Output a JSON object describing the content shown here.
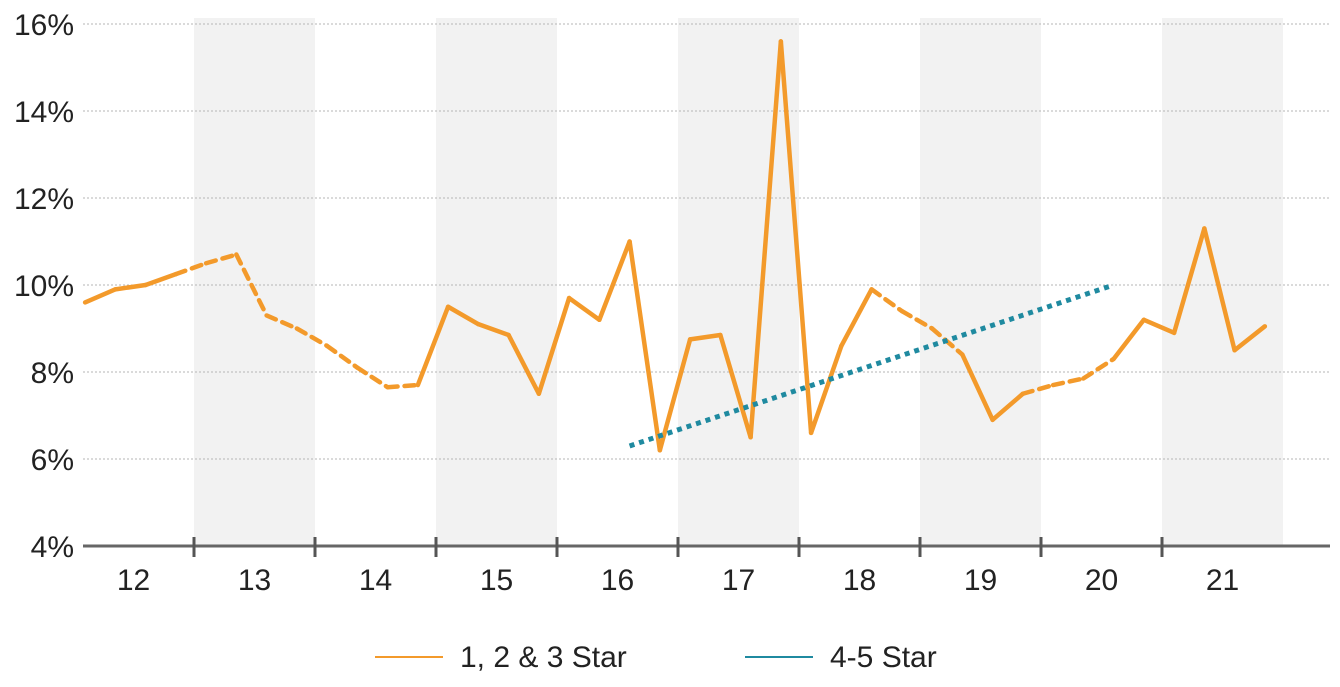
{
  "chart_data": {
    "type": "line",
    "x_categories": [
      "12",
      "13",
      "14",
      "15",
      "16",
      "17",
      "18",
      "19",
      "20",
      "21"
    ],
    "y_ticks": [
      "4%",
      "6%",
      "8%",
      "10%",
      "12%",
      "14%",
      "16%"
    ],
    "ylim": [
      4,
      16
    ],
    "xlim": [
      0,
      10
    ],
    "grid": true,
    "legend_position": "bottom",
    "series": [
      {
        "name": "1, 2 & 3 Star",
        "color": "#F39A2B",
        "points": [
          {
            "x": 0.1,
            "y": 9.6
          },
          {
            "x": 0.35,
            "y": 9.9
          },
          {
            "x": 0.6,
            "y": 10.0
          },
          {
            "x": 0.85,
            "y": 10.25
          },
          {
            "x": 1.1,
            "y": 10.5,
            "style": "dashed"
          },
          {
            "x": 1.35,
            "y": 10.7,
            "style": "dashed"
          },
          {
            "x": 1.6,
            "y": 9.3
          },
          {
            "x": 1.85,
            "y": 9.0,
            "style": "dashed"
          },
          {
            "x": 2.1,
            "y": 8.6,
            "style": "dashed"
          },
          {
            "x": 2.35,
            "y": 8.1,
            "style": "dashed"
          },
          {
            "x": 2.6,
            "y": 7.65,
            "style": "dashed"
          },
          {
            "x": 2.85,
            "y": 7.7
          },
          {
            "x": 3.1,
            "y": 9.5
          },
          {
            "x": 3.35,
            "y": 9.1
          },
          {
            "x": 3.6,
            "y": 8.85
          },
          {
            "x": 3.85,
            "y": 7.5
          },
          {
            "x": 4.1,
            "y": 9.7
          },
          {
            "x": 4.35,
            "y": 9.2
          },
          {
            "x": 4.6,
            "y": 11.0
          },
          {
            "x": 4.85,
            "y": 6.2
          },
          {
            "x": 5.1,
            "y": 8.75
          },
          {
            "x": 5.35,
            "y": 8.85
          },
          {
            "x": 5.6,
            "y": 6.5
          },
          {
            "x": 5.85,
            "y": 15.6
          },
          {
            "x": 6.1,
            "y": 6.6
          },
          {
            "x": 6.35,
            "y": 8.6
          },
          {
            "x": 6.6,
            "y": 9.9
          },
          {
            "x": 6.85,
            "y": 9.4,
            "style": "dashed"
          },
          {
            "x": 7.1,
            "y": 9.0,
            "style": "dashed"
          },
          {
            "x": 7.35,
            "y": 8.4
          },
          {
            "x": 7.6,
            "y": 6.9
          },
          {
            "x": 7.85,
            "y": 7.5
          },
          {
            "x": 8.1,
            "y": 7.7,
            "style": "dashed"
          },
          {
            "x": 8.35,
            "y": 7.85,
            "style": "dashed"
          },
          {
            "x": 8.6,
            "y": 8.3
          },
          {
            "x": 8.85,
            "y": 9.2
          },
          {
            "x": 9.1,
            "y": 8.9
          },
          {
            "x": 9.35,
            "y": 11.3
          },
          {
            "x": 9.6,
            "y": 8.5
          },
          {
            "x": 9.85,
            "y": 9.05
          }
        ]
      },
      {
        "name": "4-5 Star",
        "color": "#1F8AA0",
        "style": "dotted",
        "points": [
          {
            "x": 4.6,
            "y": 6.3
          },
          {
            "x": 8.6,
            "y": 10.0
          }
        ]
      }
    ],
    "shaded_bands": [
      1,
      3,
      5,
      7,
      9
    ]
  }
}
